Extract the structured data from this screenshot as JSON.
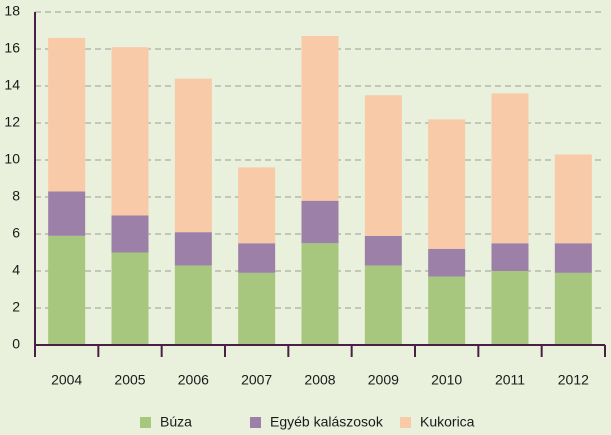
{
  "chart_data": {
    "type": "stacked_bar",
    "categories": [
      "2004",
      "2005",
      "2006",
      "2007",
      "2008",
      "2009",
      "2010",
      "2011",
      "2012"
    ],
    "series": [
      {
        "name": "Búza",
        "color": "#a7c77f",
        "values": [
          5.9,
          5.0,
          4.3,
          3.9,
          5.5,
          4.3,
          3.7,
          4.0,
          3.9
        ]
      },
      {
        "name": "Egyéb kalászosok",
        "color": "#9c80a8",
        "values": [
          2.4,
          2.0,
          1.8,
          1.6,
          2.3,
          1.6,
          1.5,
          1.5,
          1.6
        ]
      },
      {
        "name": "Kukorica",
        "color": "#f9caa8",
        "values": [
          8.3,
          9.1,
          8.3,
          4.1,
          8.9,
          7.6,
          7.0,
          8.1,
          4.8
        ]
      }
    ],
    "ylim": [
      0,
      18
    ],
    "yticks": [
      0,
      2,
      4,
      6,
      8,
      10,
      12,
      14,
      16,
      18
    ],
    "grid": true,
    "legend": "bottom"
  }
}
